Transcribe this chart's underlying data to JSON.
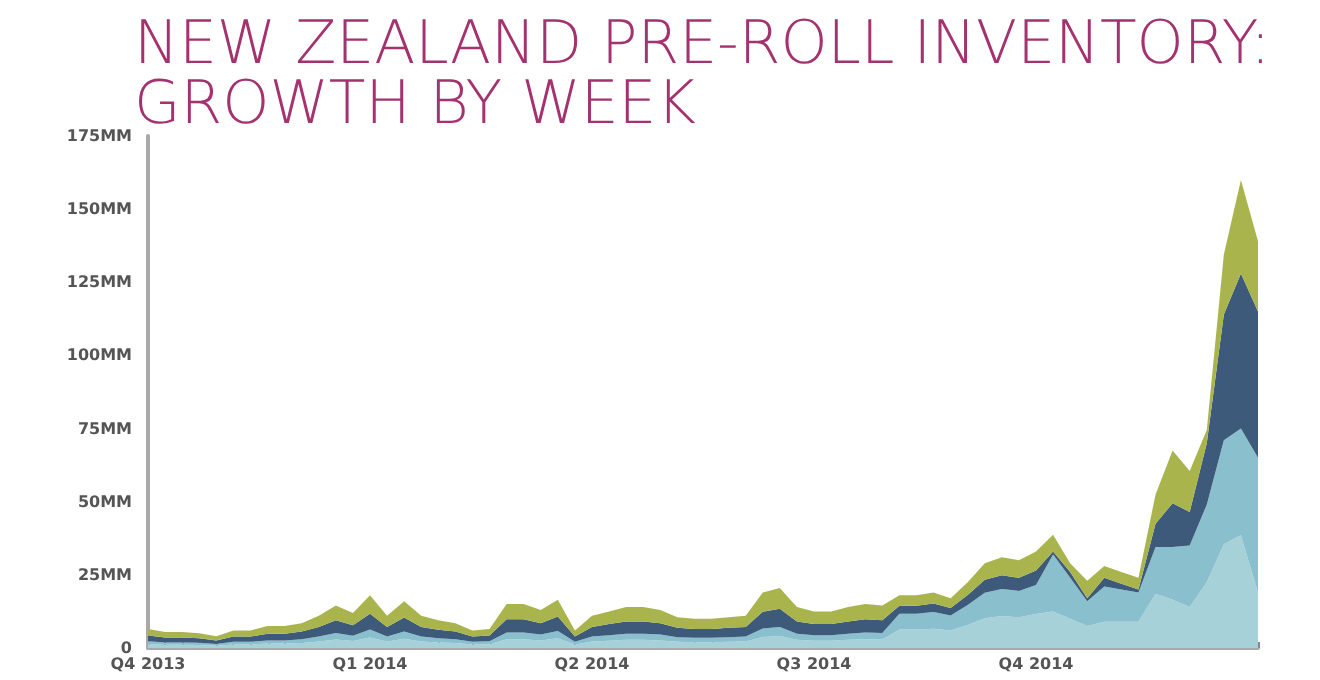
{
  "chart_data": {
    "type": "area",
    "title": "NEW ZEALAND PRE-ROLL INVENTORY: GROWTH BY WEEK",
    "stacked": true,
    "grid": false,
    "marker": "none",
    "categories": [
      "Q4 2013",
      null,
      null,
      null,
      null,
      null,
      null,
      null,
      null,
      null,
      null,
      null,
      null,
      "Q1 2014",
      null,
      null,
      null,
      null,
      null,
      null,
      null,
      null,
      null,
      null,
      null,
      null,
      "Q2 2014",
      null,
      null,
      null,
      null,
      null,
      null,
      null,
      null,
      null,
      null,
      null,
      null,
      "Q3 2014",
      null,
      null,
      null,
      null,
      null,
      null,
      null,
      null,
      null,
      null,
      null,
      null,
      "Q4 2014",
      null,
      null,
      null,
      null,
      null,
      null,
      null,
      null,
      null,
      null,
      null,
      null,
      null
    ],
    "ylim": [
      0,
      175
    ],
    "yticks": [
      0,
      {
        "value": 25,
        "label": "25MM"
      },
      {
        "value": 50,
        "label": "50MM"
      },
      {
        "value": 75,
        "label": "75MM"
      },
      {
        "value": 100,
        "label": "100MM"
      },
      {
        "value": 125,
        "label": "125MM"
      },
      {
        "value": 150,
        "label": "150MM"
      },
      {
        "value": 175,
        "label": "175MM"
      }
    ],
    "series": [
      {
        "color": "#a7d1d9",
        "values": [
          1.3,
          1.1,
          1.1,
          1.0,
          0.8,
          1.2,
          1.2,
          1.5,
          1.5,
          1.7,
          2.2,
          2.9,
          2.4,
          3.6,
          2.2,
          3.2,
          2.2,
          1.9,
          1.7,
          1.2,
          1.3,
          3.0,
          3.0,
          2.6,
          3.3,
          1.2,
          2.2,
          2.5,
          2.8,
          2.8,
          2.6,
          2.1,
          2.0,
          2.0,
          2.1,
          2.2,
          3.8,
          4.1,
          2.8,
          2.5,
          2.5,
          2.8,
          3.0,
          2.9,
          6.3,
          6.3,
          6.6,
          6.0,
          7.9,
          10.2,
          10.9,
          10.5,
          11.6,
          12.5,
          10,
          7.5,
          9,
          9,
          9,
          18.5,
          16.5,
          14,
          22.5,
          35.5,
          38.5,
          19
        ]
      },
      {
        "color": "#8abfcd",
        "values": [
          1.0,
          0.8,
          0.8,
          0.8,
          0.6,
          0.9,
          0.9,
          1.1,
          1.1,
          1.3,
          1.7,
          2.2,
          1.8,
          2.7,
          1.7,
          2.4,
          1.7,
          1.4,
          1.3,
          0.9,
          1.0,
          2.3,
          2.3,
          2.0,
          2.5,
          0.9,
          1.7,
          1.9,
          2.1,
          2.1,
          2.0,
          1.6,
          1.5,
          1.5,
          1.6,
          1.7,
          2.9,
          3.1,
          2.1,
          1.9,
          1.9,
          2.1,
          2.3,
          2.2,
          5.4,
          5.4,
          5.7,
          5.1,
          6.8,
          8.7,
          9.3,
          9.0,
          9.9,
          19.5,
          14,
          8.5,
          12,
          11,
          10,
          16,
          18,
          21,
          26.5,
          35.5,
          36.5,
          46
        ]
      },
      {
        "color": "#3e5a7b",
        "values": [
          2.0,
          1.7,
          1.7,
          1.5,
          1.2,
          1.8,
          1.8,
          2.3,
          2.3,
          2.6,
          3.3,
          4.4,
          3.6,
          5.4,
          3.3,
          4.8,
          3.3,
          2.9,
          2.6,
          1.8,
          2.0,
          4.5,
          4.5,
          3.9,
          5.0,
          1.8,
          3.3,
          3.8,
          4.2,
          4.2,
          3.9,
          3.2,
          3.0,
          3.0,
          3.2,
          3.3,
          5.7,
          6.2,
          4.2,
          3.8,
          3.8,
          4.2,
          4.5,
          4.4,
          2.7,
          2.7,
          2.9,
          2.6,
          3.4,
          4.4,
          4.7,
          4.5,
          5.0,
          1,
          2,
          1,
          3,
          2,
          1,
          8,
          15,
          11.5,
          21,
          43,
          53,
          50
        ]
      },
      {
        "color": "#a9b54c",
        "values": [
          2.2,
          1.9,
          1.9,
          1.7,
          1.4,
          2.1,
          2.1,
          2.6,
          2.6,
          2.9,
          3.8,
          5.0,
          4.2,
          6.3,
          3.8,
          5.6,
          3.8,
          3.3,
          2.9,
          2.1,
          2.2,
          5.2,
          5.2,
          4.5,
          5.7,
          2.1,
          3.8,
          4.3,
          4.9,
          4.9,
          4.5,
          3.6,
          3.5,
          3.5,
          3.6,
          3.8,
          6.6,
          7.1,
          4.9,
          4.3,
          4.3,
          4.9,
          5.2,
          5.0,
          3.6,
          3.6,
          3.8,
          3.3,
          4.4,
          5.7,
          6.1,
          6.0,
          6.5,
          5.7,
          3,
          6,
          4,
          4,
          4,
          10,
          18,
          14,
          4.5,
          20.5,
          32,
          24
        ]
      }
    ]
  }
}
